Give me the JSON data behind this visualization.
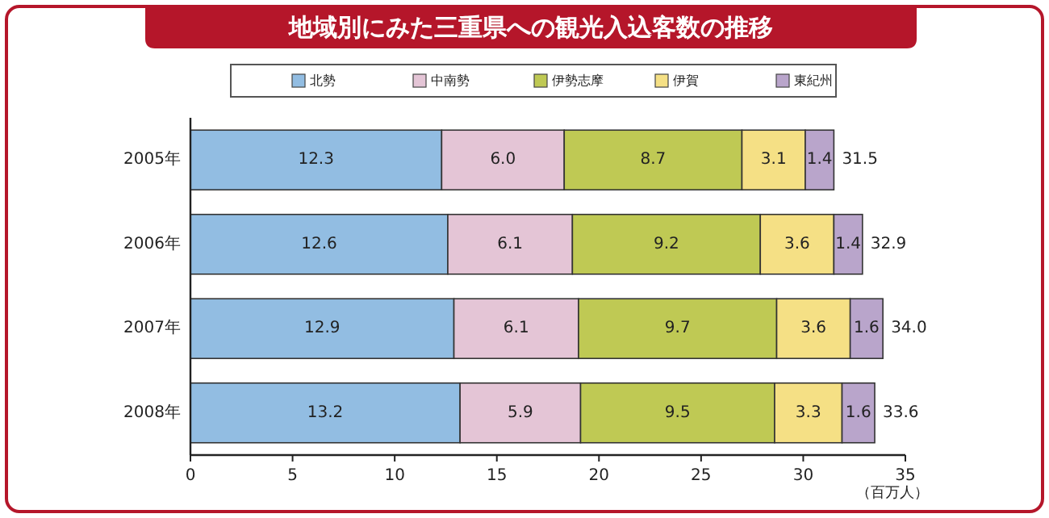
{
  "chart_data": {
    "type": "bar",
    "title": "地域別にみた三重県への観光入込客数の推移",
    "xlabel": "（百万人）",
    "orientation": "horizontal",
    "stacked": true,
    "legend": "top",
    "categories": [
      "2005年",
      "2006年",
      "2007年",
      "2008年"
    ],
    "xlim": [
      0,
      35
    ],
    "xticks": [
      0,
      5,
      10,
      15,
      20,
      25,
      30,
      35
    ],
    "series": [
      {
        "name": "北勢",
        "color": "#92bde2",
        "values": [
          12.3,
          12.6,
          12.9,
          13.2
        ],
        "value_labels": [
          "12.3",
          "12.6",
          "12.9",
          "13.2"
        ]
      },
      {
        "name": "中南勢",
        "color": "#e4c5d6",
        "values": [
          6.0,
          6.1,
          6.1,
          5.9
        ],
        "value_labels": [
          "6.0",
          "6.1",
          "6.1",
          "5.9"
        ]
      },
      {
        "name": "伊勢志摩",
        "color": "#bfc954",
        "values": [
          8.7,
          9.2,
          9.7,
          9.5
        ],
        "value_labels": [
          "8.7",
          "9.2",
          "9.7",
          "9.5"
        ]
      },
      {
        "name": "伊賀",
        "color": "#f5e085",
        "values": [
          3.1,
          3.6,
          3.6,
          3.3
        ],
        "value_labels": [
          "3.1",
          "3.6",
          "3.6",
          "3.3"
        ]
      },
      {
        "name": "東紀州",
        "color": "#b9a5cb",
        "values": [
          1.4,
          1.4,
          1.6,
          1.6
        ],
        "value_labels": [
          "1.4",
          "1.4",
          "1.6",
          "1.6"
        ]
      }
    ],
    "totals": [
      "31.5",
      "32.9",
      "34.0",
      "33.6"
    ]
  }
}
